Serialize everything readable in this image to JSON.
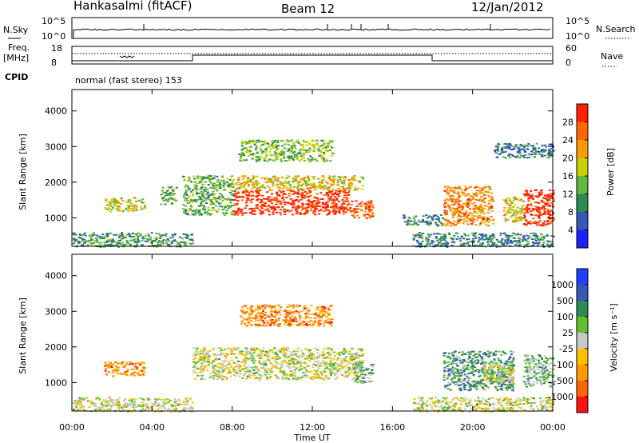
{
  "header": {
    "station": "Hankasalmi (fitACF)",
    "beam": "Beam 12",
    "date": "12/Jan/2012"
  },
  "status_panels": {
    "nsky_label": "N.Sky",
    "nsky_ticks": [
      "10^5",
      "10^0"
    ],
    "nsearch_label": "N.Search",
    "nsearch_ticks": [
      "10^5",
      "10^0"
    ],
    "freq_label_1": "Freq.",
    "freq_label_2": "[MHz]",
    "freq_ticks": [
      "18",
      "8"
    ],
    "nave_label": "Nave",
    "nave_ticks": [
      "60",
      "0"
    ],
    "cpid_label": "CPID",
    "cpid_text": "normal (fast stereo) 153"
  },
  "chart_data": [
    {
      "type": "heatmap",
      "panel": "power",
      "ylabel": "Slant Range [km]",
      "xlabel": "",
      "xlim": [
        0,
        24
      ],
      "ylim": [
        200,
        4600
      ],
      "yticks": [
        1000,
        2000,
        3000,
        4000
      ],
      "colorbar_label": "Power [dB]",
      "colorbar_ticks": [
        "28",
        "24",
        "20",
        "16",
        "12",
        "8",
        "4"
      ],
      "colors": [
        "#2020ff",
        "#3858b8",
        "#2e8a55",
        "#60b840",
        "#c8d000",
        "#ff9900",
        "#ff6600",
        "#ff2200"
      ],
      "regions": [
        {
          "x": [
            8.0,
            13.8
          ],
          "y": [
            1100,
            1800
          ],
          "level": 0.95
        },
        {
          "x": [
            13.8,
            15.0
          ],
          "y": [
            1000,
            1500
          ],
          "level": 0.8
        },
        {
          "x": [
            8.0,
            14.5
          ],
          "y": [
            1800,
            2200
          ],
          "level": 0.6
        },
        {
          "x": [
            8.3,
            13.0
          ],
          "y": [
            2600,
            3200
          ],
          "level": 0.45
        },
        {
          "x": [
            5.5,
            8.0
          ],
          "y": [
            1100,
            2200
          ],
          "level": 0.4
        },
        {
          "x": [
            0.0,
            6.0
          ],
          "y": [
            200,
            600
          ],
          "level": 0.35
        },
        {
          "x": [
            1.6,
            3.6
          ],
          "y": [
            1200,
            1600
          ],
          "level": 0.55
        },
        {
          "x": [
            4.4,
            5.2
          ],
          "y": [
            1400,
            1900
          ],
          "level": 0.4
        },
        {
          "x": [
            18.5,
            21.0
          ],
          "y": [
            800,
            1900
          ],
          "level": 0.75
        },
        {
          "x": [
            22.5,
            24.0
          ],
          "y": [
            800,
            1800
          ],
          "level": 0.95
        },
        {
          "x": [
            21.5,
            22.5
          ],
          "y": [
            900,
            1600
          ],
          "level": 0.6
        },
        {
          "x": [
            17.0,
            24.0
          ],
          "y": [
            200,
            600
          ],
          "level": 0.3
        },
        {
          "x": [
            21.0,
            24.0
          ],
          "y": [
            2700,
            3100
          ],
          "level": 0.25
        },
        {
          "x": [
            16.5,
            18.5
          ],
          "y": [
            800,
            1100
          ],
          "level": 0.3
        }
      ]
    },
    {
      "type": "heatmap",
      "panel": "velocity",
      "ylabel": "Slant Range [km]",
      "xlabel": "Time UT",
      "xlim": [
        0,
        24
      ],
      "ylim": [
        200,
        4600
      ],
      "yticks": [
        1000,
        2000,
        3000,
        4000
      ],
      "xticks": [
        "00:00",
        "04:00",
        "08:00",
        "12:00",
        "16:00",
        "20:00",
        "00:00"
      ],
      "colorbar_label": "Velocity [m s⁻¹]",
      "colorbar_ticks": [
        "1000",
        "500",
        "100",
        "25",
        "-25",
        "-100",
        "-500",
        "-1000"
      ],
      "colors": [
        "#ff1010",
        "#ff6600",
        "#ff9900",
        "#ffc000",
        "#c8c8c8",
        "#60c030",
        "#2e8a55",
        "#3858b8",
        "#2040ff"
      ],
      "regions": [
        {
          "x": [
            6.0,
            14.5
          ],
          "y": [
            1100,
            2000
          ],
          "level": 0.5
        },
        {
          "x": [
            8.3,
            13.0
          ],
          "y": [
            2600,
            3200
          ],
          "level": 0.25
        },
        {
          "x": [
            14.0,
            15.0
          ],
          "y": [
            1000,
            1600
          ],
          "level": 0.62
        },
        {
          "x": [
            0.0,
            6.0
          ],
          "y": [
            200,
            600
          ],
          "level": 0.5
        },
        {
          "x": [
            1.6,
            3.6
          ],
          "y": [
            1200,
            1600
          ],
          "level": 0.25
        },
        {
          "x": [
            18.5,
            22.0
          ],
          "y": [
            800,
            1900
          ],
          "level": 0.7
        },
        {
          "x": [
            22.5,
            24.0
          ],
          "y": [
            900,
            1800
          ],
          "level": 0.62
        },
        {
          "x": [
            17.0,
            24.0
          ],
          "y": [
            200,
            600
          ],
          "level": 0.5
        },
        {
          "x": [
            20.5,
            22.0
          ],
          "y": [
            1000,
            1600
          ],
          "level": 0.5
        }
      ]
    }
  ]
}
